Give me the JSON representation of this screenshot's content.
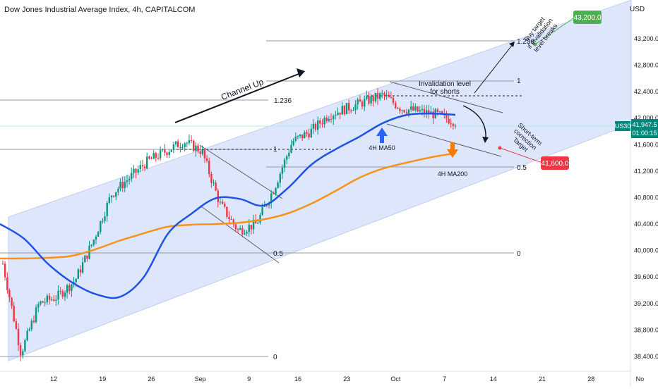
{
  "header": {
    "title": "Dow Jones Industrial Average Index, 4h, CAPITALCOM",
    "currency": "USD"
  },
  "price_tag": {
    "symbol": "US30",
    "price": "41,947.5",
    "countdown": "01:00:15"
  },
  "colors": {
    "channel_fill": "#dde6fb",
    "candle_up": "#089981",
    "candle_down": "#f23645",
    "ma50": "#1e53e5",
    "ma200": "#f7931a",
    "buy_target": "#4caf50",
    "correction_target": "#f23645",
    "arrow_ma50": "#2962ff",
    "arrow_ma200": "#f57c00"
  },
  "annotations": {
    "channel_up": "Channel Up",
    "invalidation_line1": "Invalidation level",
    "invalidation_line2": "for shorts",
    "buy_line1": "Buy target",
    "buy_line2": "if invalidation",
    "buy_line3": "level breaks",
    "buy_target_value": "43,200.0",
    "corr_line1": "Short-term",
    "corr_line2": "correction",
    "corr_line3": "Target",
    "corr_target_value": "41,600.0",
    "ma50_label": "4H MA50",
    "ma200_label": "4H MA200",
    "fib_left_1236": "1.236",
    "fib_left_1": "1",
    "fib_left_05": "0.5",
    "fib_left_0": "0",
    "fib_right_1236": "1.236",
    "fib_right_1": "1",
    "fib_right_05": "0.5",
    "fib_right_0": "0"
  },
  "chart_data": {
    "type": "line",
    "title": "Dow Jones Industrial Average Index, 4h, CAPITALCOM",
    "x_ticks": [
      "12",
      "19",
      "26",
      "Sep",
      "9",
      "16",
      "23",
      "Oct",
      "7",
      "14",
      "21",
      "28",
      "No"
    ],
    "y_ticks": [
      "43,200.0",
      "42,800.0",
      "42,400.0",
      "42,000.0",
      "41,600.0",
      "41,200.0",
      "40,800.0",
      "40,400.0",
      "40,000.0",
      "39,600.0",
      "39,200.0",
      "38,800.0",
      "38,400.0"
    ],
    "ylim": [
      38250,
      43700
    ],
    "last_price": 41947.5,
    "series": [
      {
        "name": "4H MA50",
        "values": [
          40400,
          40180,
          39800,
          39520,
          39340,
          39300,
          39600,
          40250,
          40560,
          40790,
          40780,
          40680,
          40940,
          41300,
          41530,
          41720,
          41930,
          42050,
          42070,
          42050
        ]
      },
      {
        "name": "4H MA200",
        "values": [
          39880,
          39880,
          39890,
          39920,
          40020,
          40150,
          40260,
          40360,
          40390,
          40400,
          40420,
          40470,
          40560,
          40710,
          40900,
          41100,
          41240,
          41330,
          41410,
          41470
        ]
      },
      {
        "name": "Price",
        "values": [
          39800,
          38450,
          39200,
          39300,
          39550,
          40150,
          40850,
          41100,
          41350,
          41500,
          41650,
          41500,
          40700,
          40300,
          40400,
          40950,
          41650,
          41800,
          42050,
          42150,
          42250,
          42350,
          42150,
          42100,
          42050,
          41947
        ]
      }
    ]
  }
}
